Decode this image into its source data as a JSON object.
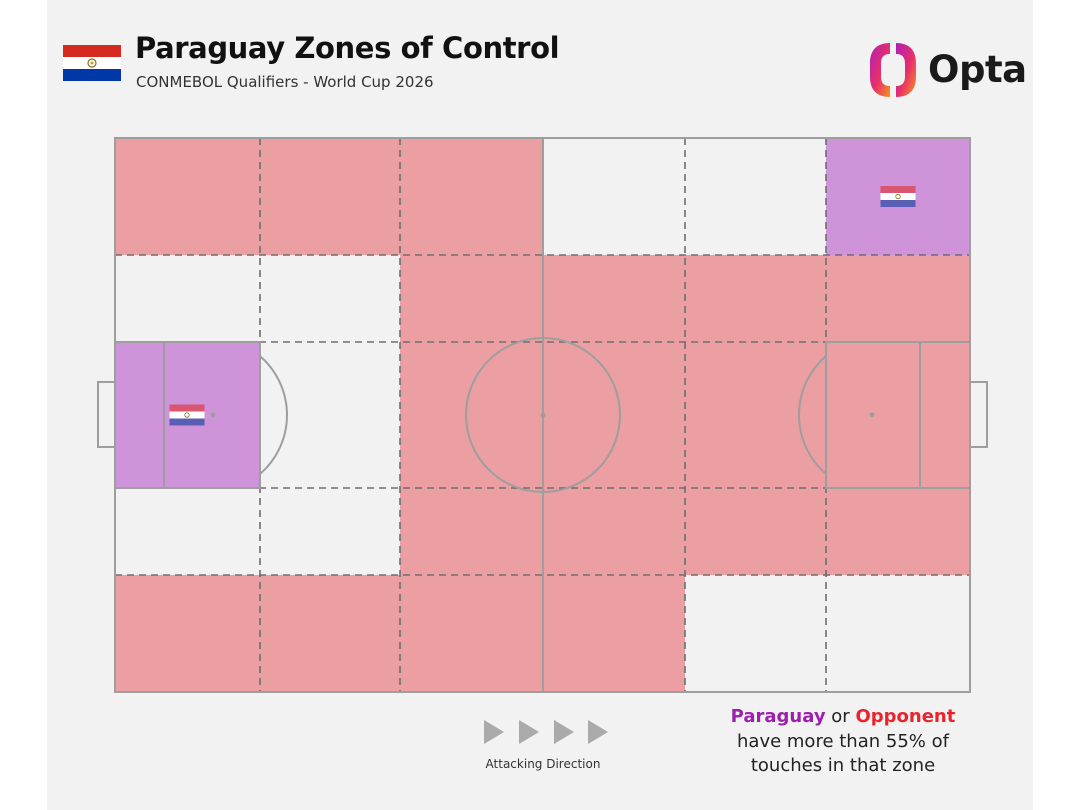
{
  "header": {
    "title": "Paraguay Zones of Control",
    "subtitle": "CONMEBOL Qualifiers - World Cup 2026",
    "brand": "Opta"
  },
  "legend": {
    "team": "Paraguay",
    "connector": "or",
    "opponent": "Opponent",
    "line2": "have more than 55% of",
    "line3": "touches in that zone"
  },
  "attacking_direction_label": "Attacking Direction",
  "colors": {
    "paraguay": "#ce93d8",
    "opponent": "#ec9fa3",
    "neutral": "#f2f2f2",
    "pitch_lines": "#9e9e9e",
    "flag_red": "#d52b1e",
    "flag_blue": "#0038a8"
  },
  "chart_data": {
    "type": "heatmap",
    "columns": 6,
    "rows": 5,
    "row_order": "top-to-bottom",
    "column_order": "left-to-right",
    "grid": [
      [
        "opponent",
        "opponent",
        "opponent",
        "neutral",
        "neutral",
        "paraguay"
      ],
      [
        "neutral",
        "neutral",
        "opponent",
        "opponent",
        "opponent",
        "opponent"
      ],
      [
        "paraguay",
        "neutral",
        "opponent",
        "opponent",
        "opponent",
        "opponent"
      ],
      [
        "neutral",
        "neutral",
        "opponent",
        "opponent",
        "opponent",
        "opponent"
      ],
      [
        "opponent",
        "opponent",
        "opponent",
        "opponent",
        "neutral",
        "neutral"
      ]
    ],
    "threshold_percent": 55
  }
}
